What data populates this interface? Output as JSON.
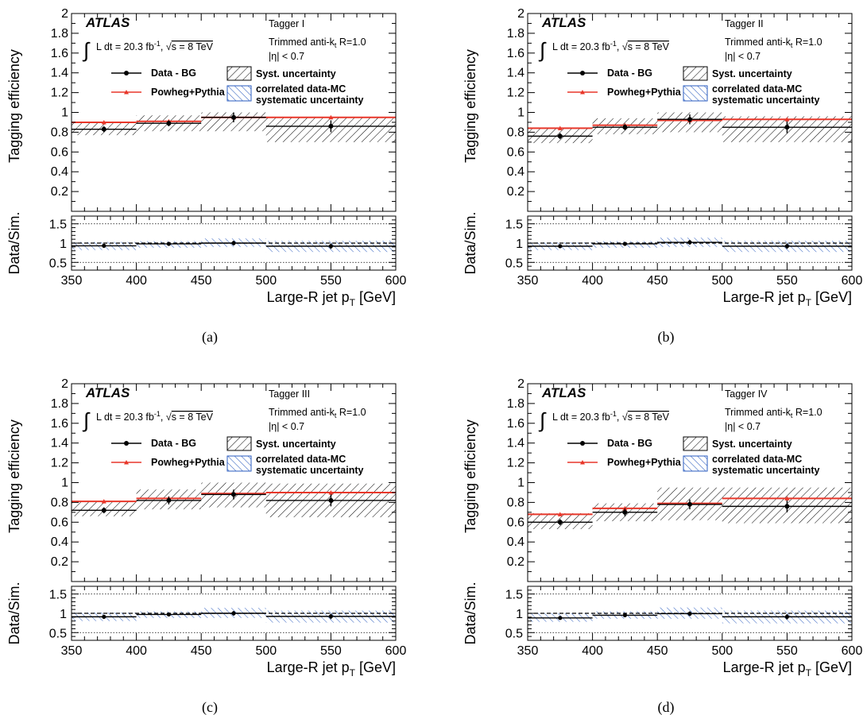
{
  "chart_data": [
    {
      "type": "step-histogram",
      "panel_caption": "(a)",
      "tagger": "Tagger I",
      "x_bins": [
        [
          350,
          400
        ],
        [
          400,
          450
        ],
        [
          450,
          500
        ],
        [
          500,
          600
        ]
      ],
      "x_centers": [
        375,
        425,
        475,
        550
      ],
      "series": [
        {
          "name": "Data - BG",
          "values": [
            0.83,
            0.89,
            0.95,
            0.86
          ],
          "errors": [
            0.03,
            0.03,
            0.05,
            0.06
          ]
        },
        {
          "name": "Powheg+Pythia",
          "values": [
            0.9,
            0.91,
            0.95,
            0.95
          ]
        }
      ],
      "syst_band": {
        "name": "Syst. uncertainty",
        "low": [
          0.77,
          0.81,
          0.81,
          0.7
        ],
        "high": [
          0.9,
          0.97,
          1.0,
          0.95
        ]
      },
      "ratio": {
        "values": [
          0.93,
          0.98,
          1.0,
          0.92
        ],
        "errors": [
          0.04,
          0.04,
          0.06,
          0.07
        ]
      },
      "ratio_band": {
        "name": "correlated data-MC systematic uncertainty",
        "low": [
          0.82,
          0.88,
          0.9,
          0.77
        ],
        "high": [
          1.03,
          1.05,
          1.12,
          1.06
        ]
      }
    },
    {
      "type": "step-histogram",
      "panel_caption": "(b)",
      "tagger": "Tagger II",
      "x_bins": [
        [
          350,
          400
        ],
        [
          400,
          450
        ],
        [
          450,
          500
        ],
        [
          500,
          600
        ]
      ],
      "x_centers": [
        375,
        425,
        475,
        550
      ],
      "series": [
        {
          "name": "Data - BG",
          "values": [
            0.76,
            0.85,
            0.93,
            0.85
          ],
          "errors": [
            0.03,
            0.03,
            0.05,
            0.06
          ]
        },
        {
          "name": "Powheg+Pythia",
          "values": [
            0.84,
            0.87,
            0.92,
            0.93
          ]
        }
      ],
      "syst_band": {
        "name": "Syst. uncertainty",
        "low": [
          0.69,
          0.78,
          0.8,
          0.7
        ],
        "high": [
          0.84,
          0.94,
          1.0,
          0.96
        ]
      },
      "ratio": {
        "values": [
          0.92,
          0.98,
          1.02,
          0.92
        ],
        "errors": [
          0.04,
          0.04,
          0.06,
          0.07
        ]
      },
      "ratio_band": {
        "name": "correlated data-MC systematic uncertainty",
        "low": [
          0.82,
          0.88,
          0.9,
          0.77
        ],
        "high": [
          1.02,
          1.05,
          1.14,
          1.06
        ]
      }
    },
    {
      "type": "step-histogram",
      "panel_caption": "(c)",
      "tagger": "Tagger III",
      "x_bins": [
        [
          350,
          400
        ],
        [
          400,
          450
        ],
        [
          450,
          500
        ],
        [
          500,
          600
        ]
      ],
      "x_centers": [
        375,
        425,
        475,
        550
      ],
      "series": [
        {
          "name": "Data - BG",
          "values": [
            0.72,
            0.82,
            0.88,
            0.82
          ],
          "errors": [
            0.03,
            0.04,
            0.05,
            0.06
          ]
        },
        {
          "name": "Powheg+Pythia",
          "values": [
            0.81,
            0.84,
            0.89,
            0.9
          ]
        }
      ],
      "syst_band": {
        "name": "Syst. uncertainty",
        "low": [
          0.66,
          0.73,
          0.75,
          0.65
        ],
        "high": [
          0.81,
          0.93,
          1.0,
          0.99
        ]
      },
      "ratio": {
        "values": [
          0.91,
          0.97,
          1.0,
          0.92
        ],
        "errors": [
          0.04,
          0.04,
          0.06,
          0.07
        ]
      },
      "ratio_band": {
        "name": "correlated data-MC systematic uncertainty",
        "low": [
          0.8,
          0.88,
          0.88,
          0.76
        ],
        "high": [
          1.02,
          1.05,
          1.14,
          1.07
        ]
      }
    },
    {
      "type": "step-histogram",
      "panel_caption": "(d)",
      "tagger": "Tagger IV",
      "x_bins": [
        [
          350,
          400
        ],
        [
          400,
          450
        ],
        [
          450,
          500
        ],
        [
          500,
          600
        ]
      ],
      "x_centers": [
        375,
        425,
        475,
        550
      ],
      "series": [
        {
          "name": "Data - BG",
          "values": [
            0.6,
            0.7,
            0.78,
            0.76
          ],
          "errors": [
            0.03,
            0.04,
            0.05,
            0.06
          ]
        },
        {
          "name": "Powheg+Pythia",
          "values": [
            0.68,
            0.74,
            0.79,
            0.84
          ]
        }
      ],
      "syst_band": {
        "name": "Syst. uncertainty",
        "low": [
          0.53,
          0.61,
          0.62,
          0.59
        ],
        "high": [
          0.69,
          0.79,
          0.95,
          0.95
        ]
      },
      "ratio": {
        "values": [
          0.88,
          0.95,
          0.99,
          0.91
        ],
        "errors": [
          0.04,
          0.04,
          0.06,
          0.07
        ]
      },
      "ratio_band": {
        "name": "correlated data-MC systematic uncertainty",
        "low": [
          0.78,
          0.86,
          0.86,
          0.74
        ],
        "high": [
          1.0,
          1.05,
          1.15,
          1.07
        ]
      }
    }
  ],
  "common": {
    "atlas_label": "ATLAS",
    "lumi_prefix": "L dt = 20.3 fb",
    "lumi_sup": "-1",
    "energy_text": "s = 8 TeV",
    "jet_algo_prefix": "Trimmed anti-k",
    "jet_algo_sub": "t",
    "jet_algo_suffix": " R=1.0",
    "eta_cut": "|η| < 0.7",
    "legend_data": "Data - BG",
    "legend_mc": "Powheg+Pythia",
    "legend_syst": "Syst. uncertainty",
    "legend_corr_line1": "correlated data-MC",
    "legend_corr_line2": "systematic uncertainty",
    "ylabel_top": "Tagging efficiency",
    "ylabel_ratio": "Data/Sim.",
    "xlabel_prefix": "Large-R jet p",
    "xlabel_sub": "T",
    "xlabel_suffix": " [GeV]",
    "xlim": [
      350,
      600
    ],
    "ylim_top": [
      0,
      2
    ],
    "ylim_ratio": [
      0.3,
      1.7
    ],
    "x_ticks": [
      "350",
      "400",
      "450",
      "500",
      "550",
      "600"
    ],
    "y_ticks_top": [
      "0.2",
      "0.4",
      "0.6",
      "0.8",
      "1",
      "1.2",
      "1.4",
      "1.6",
      "1.8",
      "2"
    ],
    "y_ticks_ratio": [
      "0.5",
      "1",
      "1.5"
    ],
    "colors": {
      "data": "#000000",
      "mc": "#e8372a",
      "corr_band": "#2a5bbf",
      "syst_band": "#000000"
    }
  }
}
